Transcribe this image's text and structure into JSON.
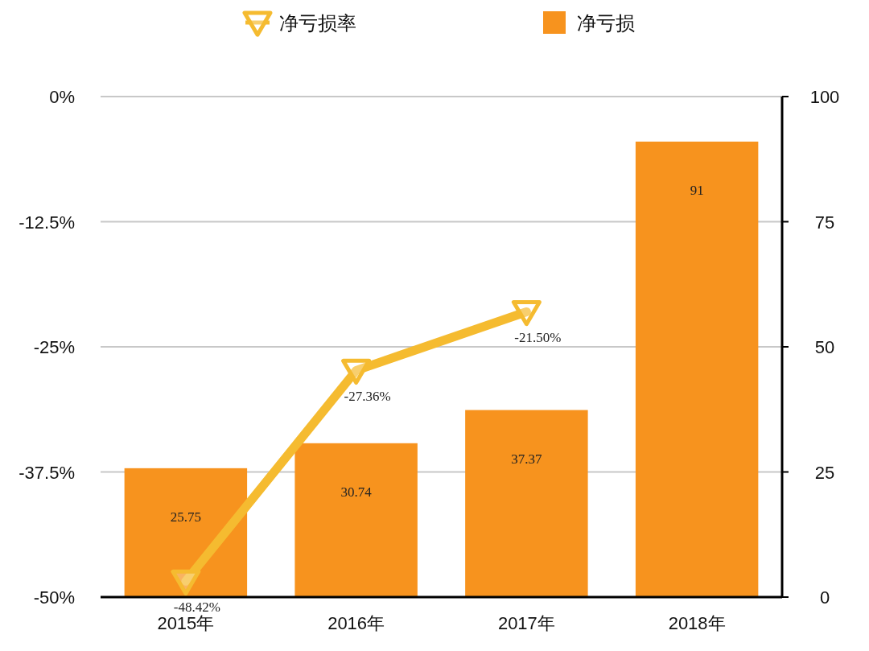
{
  "chart_data": {
    "type": "bar",
    "categories": [
      "2015年",
      "2016年",
      "2017年",
      "2018年"
    ],
    "series": [
      {
        "name": "净亏损率",
        "type": "line",
        "axis": "y",
        "color": "#f5bb30",
        "values": [
          -48.42,
          -27.36,
          -21.5,
          null
        ],
        "value_labels": [
          "-48.42%",
          "-27.36%",
          "-21.50%",
          null
        ]
      },
      {
        "name": "净亏损",
        "axis": "y2",
        "color": "#f7931e",
        "values": [
          25.75,
          30.74,
          37.37,
          91
        ],
        "value_labels": [
          "25.75",
          "30.74",
          "37.37",
          "91"
        ]
      }
    ],
    "ylim": [
      -50,
      0
    ],
    "yticks": [
      {
        "value": 0,
        "label": "0%"
      },
      {
        "value": -12.5,
        "label": "-12.5%"
      },
      {
        "value": -25,
        "label": "-25%"
      },
      {
        "value": -37.5,
        "label": "-37.5%"
      },
      {
        "value": -50,
        "label": "-50%"
      }
    ],
    "y2lim": [
      0,
      100
    ],
    "y2ticks": [
      0,
      25,
      50,
      75,
      100
    ],
    "grid": "y",
    "legend": "top",
    "marker": "triangle"
  }
}
